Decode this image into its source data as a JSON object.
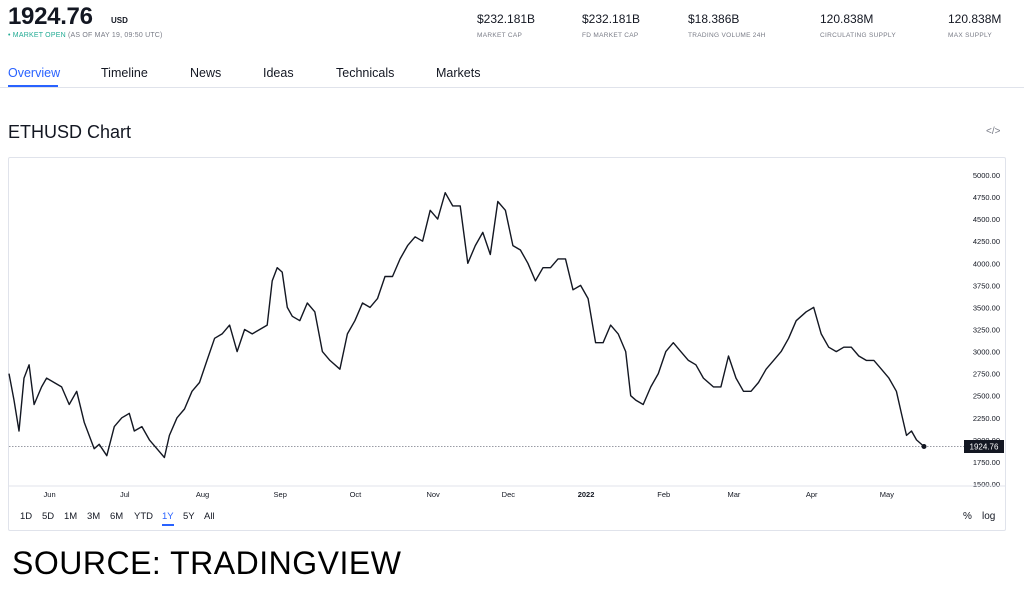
{
  "header": {
    "price": "1924.76",
    "currency": "USD",
    "market_open": "• MARKET OPEN",
    "as_of": "(AS OF MAY 19, 09:50 UTC)",
    "stats": [
      {
        "value": "$232.181B",
        "label": "MARKET CAP"
      },
      {
        "value": "$232.181B",
        "label": "FD MARKET CAP"
      },
      {
        "value": "$18.386B",
        "label": "TRADING VOLUME 24H"
      },
      {
        "value": "120.838M",
        "label": "CIRCULATING SUPPLY"
      },
      {
        "value": "120.838M",
        "label": "MAX SUPPLY"
      }
    ]
  },
  "tabs": [
    "Overview",
    "Timeline",
    "News",
    "Ideas",
    "Technicals",
    "Markets"
  ],
  "active_tab": "Overview",
  "chart_title": "ETHUSD Chart",
  "embed_icon": "code-embed-icon",
  "range_buttons": [
    "1D",
    "5D",
    "1M",
    "3M",
    "6M",
    "YTD",
    "1Y",
    "5Y",
    "All"
  ],
  "active_range": "1Y",
  "axis_options": {
    "percent": "%",
    "log": "log"
  },
  "source_text": "SOURCE: TRADINGVIEW",
  "colors": {
    "line": "#131722",
    "accent": "#2962ff",
    "open": "#22ab94",
    "price_label_bg": "#131722"
  },
  "chart_data": {
    "type": "line",
    "title": "",
    "xlabel": "",
    "ylabel": "",
    "x_ticks": [
      "Jun",
      "Jul",
      "Aug",
      "Sep",
      "Oct",
      "Nov",
      "Dec",
      "2022",
      "Feb",
      "Mar",
      "Apr",
      "May"
    ],
    "y_ticks": [
      "5000.00",
      "4750.00",
      "4500.00",
      "4250.00",
      "4000.00",
      "3750.00",
      "3500.00",
      "3250.00",
      "3000.00",
      "2750.00",
      "2500.00",
      "2250.00",
      "2000.00",
      "1750.00",
      "1500.00"
    ],
    "ylim": [
      1500,
      5000
    ],
    "grid": false,
    "last_value_label": "1924.76",
    "series": [
      {
        "x": [
          "2021-05-19",
          "2021-05-21",
          "2021-05-23",
          "2021-05-25",
          "2021-05-27",
          "2021-05-29",
          "2021-06-01",
          "2021-06-03",
          "2021-06-06",
          "2021-06-09",
          "2021-06-12",
          "2021-06-15",
          "2021-06-18",
          "2021-06-22",
          "2021-06-24",
          "2021-06-27",
          "2021-06-30",
          "2021-07-03",
          "2021-07-06",
          "2021-07-08",
          "2021-07-11",
          "2021-07-14",
          "2021-07-17",
          "2021-07-20",
          "2021-07-22",
          "2021-07-25",
          "2021-07-28",
          "2021-07-31",
          "2021-08-03",
          "2021-08-06",
          "2021-08-09",
          "2021-08-12",
          "2021-08-15",
          "2021-08-18",
          "2021-08-21",
          "2021-08-24",
          "2021-08-27",
          "2021-08-30",
          "2021-09-01",
          "2021-09-03",
          "2021-09-05",
          "2021-09-07",
          "2021-09-09",
          "2021-09-12",
          "2021-09-15",
          "2021-09-18",
          "2021-09-21",
          "2021-09-24",
          "2021-09-28",
          "2021-10-01",
          "2021-10-04",
          "2021-10-07",
          "2021-10-10",
          "2021-10-13",
          "2021-10-16",
          "2021-10-19",
          "2021-10-22",
          "2021-10-25",
          "2021-10-28",
          "2021-10-31",
          "2021-11-03",
          "2021-11-06",
          "2021-11-09",
          "2021-11-12",
          "2021-11-15",
          "2021-11-18",
          "2021-11-21",
          "2021-11-24",
          "2021-11-27",
          "2021-11-30",
          "2021-12-03",
          "2021-12-06",
          "2021-12-09",
          "2021-12-12",
          "2021-12-15",
          "2021-12-18",
          "2021-12-21",
          "2021-12-24",
          "2021-12-27",
          "2021-12-30",
          "2022-01-02",
          "2022-01-05",
          "2022-01-08",
          "2022-01-11",
          "2022-01-14",
          "2022-01-17",
          "2022-01-20",
          "2022-01-22",
          "2022-01-24",
          "2022-01-27",
          "2022-01-30",
          "2022-02-02",
          "2022-02-05",
          "2022-02-08",
          "2022-02-11",
          "2022-02-14",
          "2022-02-17",
          "2022-02-20",
          "2022-02-24",
          "2022-02-27",
          "2022-03-02",
          "2022-03-05",
          "2022-03-08",
          "2022-03-11",
          "2022-03-14",
          "2022-03-17",
          "2022-03-20",
          "2022-03-23",
          "2022-03-26",
          "2022-03-29",
          "2022-04-02",
          "2022-04-05",
          "2022-04-08",
          "2022-04-11",
          "2022-04-14",
          "2022-04-17",
          "2022-04-20",
          "2022-04-23",
          "2022-04-26",
          "2022-04-29",
          "2022-05-02",
          "2022-05-05",
          "2022-05-08",
          "2022-05-10",
          "2022-05-12",
          "2022-05-14",
          "2022-05-16",
          "2022-05-19"
        ],
        "values": [
          2750,
          2450,
          2100,
          2700,
          2850,
          2400,
          2600,
          2700,
          2650,
          2600,
          2400,
          2550,
          2200,
          1900,
          1950,
          1820,
          2150,
          2250,
          2300,
          2100,
          2150,
          2000,
          1900,
          1800,
          2050,
          2250,
          2350,
          2550,
          2650,
          2900,
          3150,
          3200,
          3300,
          3000,
          3250,
          3200,
          3250,
          3300,
          3800,
          3950,
          3900,
          3500,
          3400,
          3350,
          3550,
          3450,
          3000,
          2900,
          2800,
          3200,
          3350,
          3550,
          3500,
          3600,
          3850,
          3850,
          4050,
          4200,
          4300,
          4250,
          4600,
          4500,
          4800,
          4650,
          4650,
          4000,
          4200,
          4350,
          4100,
          4700,
          4600,
          4200,
          4150,
          4000,
          3800,
          3950,
          3950,
          4050,
          4050,
          3700,
          3750,
          3600,
          3100,
          3100,
          3300,
          3200,
          3000,
          2500,
          2450,
          2400,
          2600,
          2750,
          3000,
          3100,
          3000,
          2900,
          2850,
          2700,
          2600,
          2600,
          2950,
          2700,
          2550,
          2550,
          2650,
          2800,
          2900,
          3000,
          3150,
          3350,
          3450,
          3500,
          3200,
          3050,
          3000,
          3050,
          3050,
          2950,
          2900,
          2900,
          2800,
          2700,
          2550,
          2300,
          2050,
          2100,
          2000,
          1924.76
        ]
      }
    ]
  }
}
